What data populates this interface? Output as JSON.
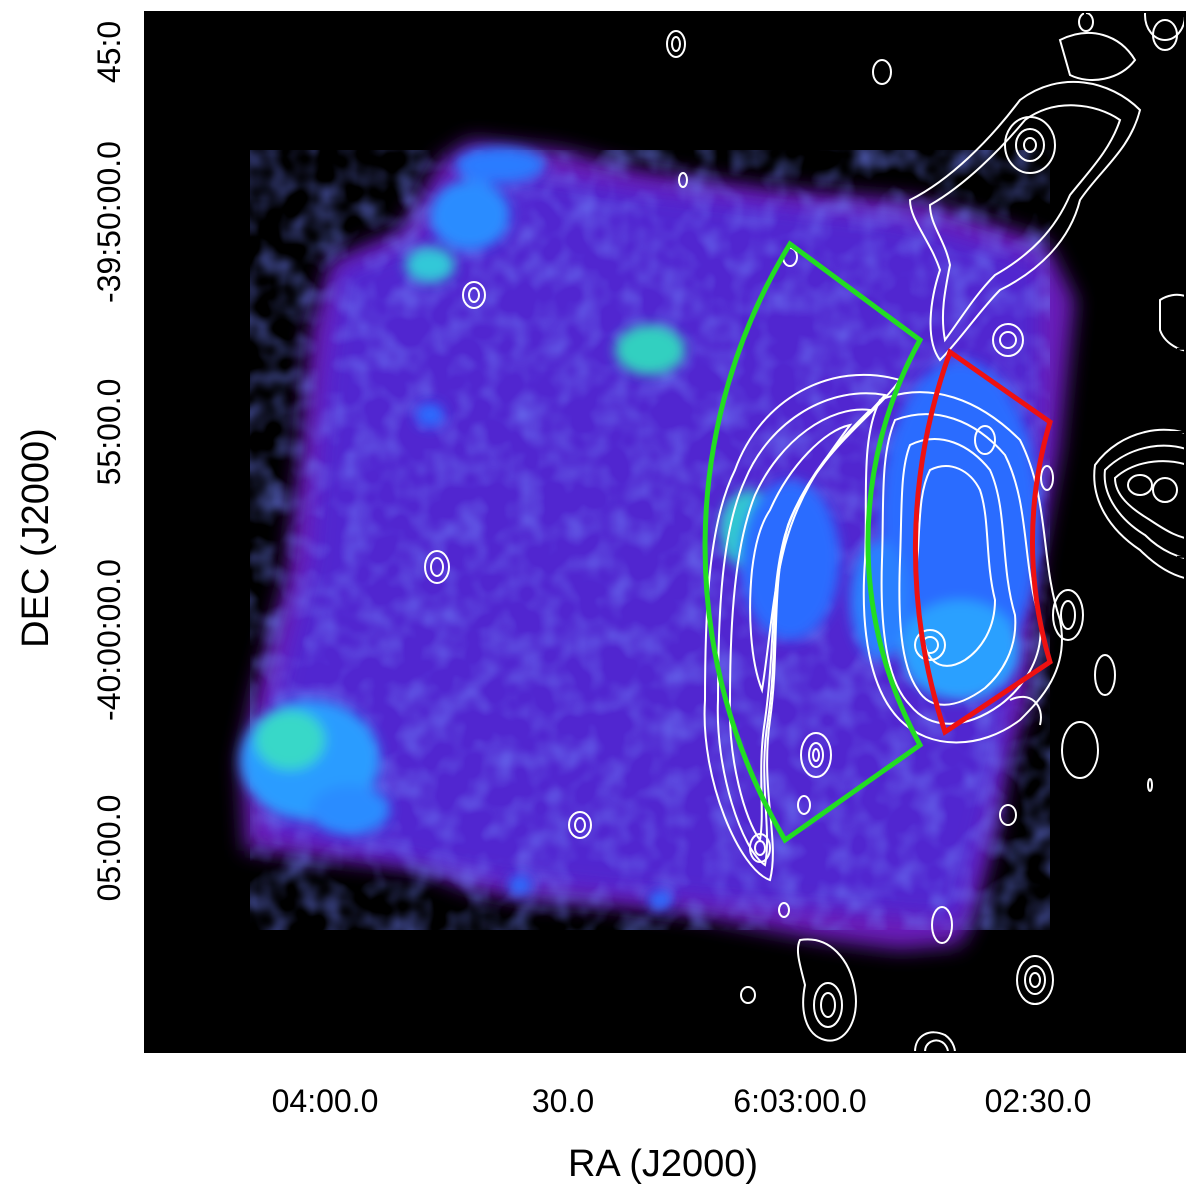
{
  "figure": {
    "x_axis_title": "RA (J2000)",
    "y_axis_title": "DEC (J2000)",
    "x_tick_labels": [
      "04:00.0",
      "30.0",
      "6:03:00.0",
      "02:30.0"
    ],
    "y_tick_labels": [
      "45:0",
      "-39:50:00.0",
      "55:00.0",
      "-40:00:00.0",
      "05:00.0"
    ],
    "image_description_colors": {
      "background": "#000000",
      "emission_low": "#6a1fb8",
      "emission_mid": "#1f3cff",
      "emission_high": "#2fe0c8",
      "contours": "#ffffff",
      "outer_sector": "#22dd22",
      "inner_sector": "#ee1111"
    }
  }
}
